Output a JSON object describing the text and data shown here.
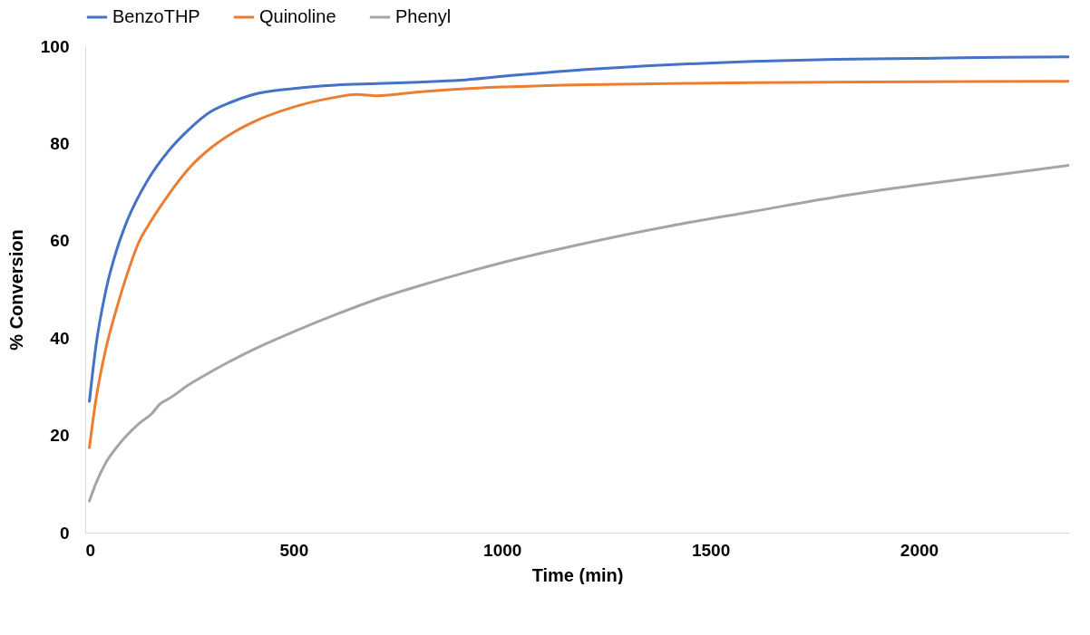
{
  "chart_data": {
    "type": "line",
    "xlabel": "Time (min)",
    "ylabel": "% Conversion",
    "xlim": [
      0,
      2360
    ],
    "ylim": [
      0,
      100
    ],
    "xticks": [
      0,
      500,
      1000,
      1500,
      2000
    ],
    "yticks": [
      0,
      20,
      40,
      60,
      80,
      100
    ],
    "grid": false,
    "legend": "top",
    "marker": "none",
    "line_style": "solid",
    "series": [
      {
        "name": "BenzoTHP",
        "color": "#4472c4",
        "x": [
          10,
          25,
          50,
          75,
          100,
          150,
          200,
          250,
          300,
          350,
          400,
          500,
          600,
          700,
          800,
          900,
          1000,
          1200,
          1400,
          1600,
          1800,
          2000,
          2200,
          2360
        ],
        "values": [
          27,
          38,
          50,
          58,
          64,
          72.5,
          78.5,
          83,
          86.5,
          88.5,
          90,
          91.3,
          92,
          92.3,
          92.6,
          93,
          93.8,
          95.2,
          96.2,
          96.9,
          97.3,
          97.5,
          97.7,
          97.8
        ]
      },
      {
        "name": "Quinoline",
        "color": "#ed7d31",
        "x": [
          10,
          25,
          50,
          75,
          100,
          130,
          150,
          200,
          250,
          300,
          350,
          400,
          500,
          600,
          650,
          700,
          800,
          900,
          1000,
          1200,
          1400,
          1600,
          2000,
          2360
        ],
        "values": [
          17.5,
          27,
          38,
          46,
          53,
          60,
          63,
          69.5,
          75,
          79,
          82,
          84.3,
          87.5,
          89.5,
          90.1,
          89.8,
          90.6,
          91.2,
          91.6,
          92.1,
          92.3,
          92.5,
          92.7,
          92.8
        ]
      },
      {
        "name": "Phenyl",
        "color": "#a5a5a5",
        "x": [
          10,
          25,
          50,
          75,
          100,
          130,
          160,
          180,
          200,
          250,
          300,
          400,
          500,
          600,
          700,
          800,
          1000,
          1200,
          1400,
          1600,
          1800,
          2000,
          2200,
          2360
        ],
        "values": [
          6.5,
          10,
          14.5,
          17.5,
          20,
          22.5,
          24.5,
          26.5,
          27.5,
          30.5,
          33,
          37.5,
          41.3,
          44.8,
          48,
          50.7,
          55.5,
          59.5,
          63,
          66,
          69,
          71.5,
          73.7,
          75.5
        ]
      }
    ]
  }
}
